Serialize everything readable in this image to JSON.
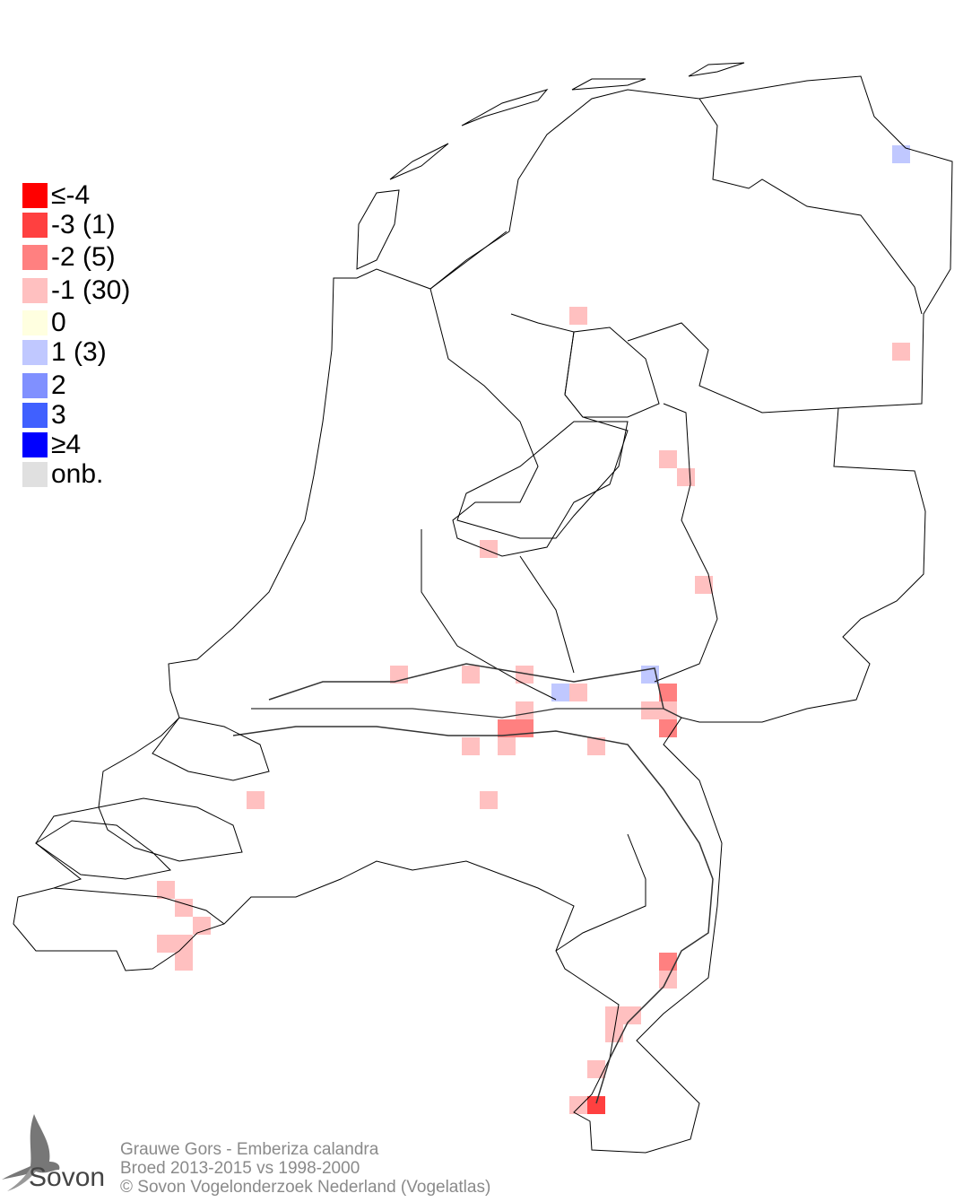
{
  "legend": {
    "items": [
      {
        "label": "≤-4",
        "color": "#ff0000"
      },
      {
        "label": "-3 (1)",
        "color": "#ff4040"
      },
      {
        "label": "-2 (5)",
        "color": "#ff8080"
      },
      {
        "label": "-1 (30)",
        "color": "#ffc0c0"
      },
      {
        "label": " 0",
        "color": "#ffffe0"
      },
      {
        "label": " 1 (3)",
        "color": "#c0c8ff"
      },
      {
        "label": " 2",
        "color": "#8090ff"
      },
      {
        "label": " 3",
        "color": "#4060ff"
      },
      {
        "label": "≥4",
        "color": "#0000ff"
      },
      {
        "label": "onb.",
        "color": "#e0e0e0"
      }
    ]
  },
  "map_cells": [
    {
      "col": 49,
      "row": 8,
      "value": 1
    },
    {
      "col": 31,
      "row": 17,
      "value": -1
    },
    {
      "col": 49,
      "row": 19,
      "value": -1
    },
    {
      "col": 36,
      "row": 25,
      "value": -1
    },
    {
      "col": 37,
      "row": 26,
      "value": -1
    },
    {
      "col": 26,
      "row": 30,
      "value": -1
    },
    {
      "col": 38,
      "row": 32,
      "value": -1
    },
    {
      "col": 21,
      "row": 37,
      "value": -1
    },
    {
      "col": 25,
      "row": 37,
      "value": -1
    },
    {
      "col": 28,
      "row": 37,
      "value": -1
    },
    {
      "col": 35,
      "row": 37,
      "value": 1
    },
    {
      "col": 30,
      "row": 38,
      "value": 1
    },
    {
      "col": 31,
      "row": 38,
      "value": -1
    },
    {
      "col": 36,
      "row": 38,
      "value": -2
    },
    {
      "col": 35,
      "row": 39,
      "value": -1
    },
    {
      "col": 36,
      "row": 39,
      "value": -1
    },
    {
      "col": 28,
      "row": 39,
      "value": -1
    },
    {
      "col": 27,
      "row": 40,
      "value": -2
    },
    {
      "col": 28,
      "row": 40,
      "value": -2
    },
    {
      "col": 36,
      "row": 40,
      "value": -2
    },
    {
      "col": 25,
      "row": 41,
      "value": -1
    },
    {
      "col": 27,
      "row": 41,
      "value": -1
    },
    {
      "col": 32,
      "row": 41,
      "value": -1
    },
    {
      "col": 13,
      "row": 44,
      "value": -1
    },
    {
      "col": 26,
      "row": 44,
      "value": -1
    },
    {
      "col": 8,
      "row": 49,
      "value": -1
    },
    {
      "col": 9,
      "row": 50,
      "value": -1
    },
    {
      "col": 10,
      "row": 51,
      "value": -1
    },
    {
      "col": 8,
      "row": 52,
      "value": -1
    },
    {
      "col": 9,
      "row": 52,
      "value": -1
    },
    {
      "col": 9,
      "row": 53,
      "value": -1
    },
    {
      "col": 36,
      "row": 53,
      "value": -2
    },
    {
      "col": 36,
      "row": 54,
      "value": -1
    },
    {
      "col": 33,
      "row": 56,
      "value": -1
    },
    {
      "col": 34,
      "row": 56,
      "value": -1
    },
    {
      "col": 33,
      "row": 57,
      "value": -1
    },
    {
      "col": 32,
      "row": 59,
      "value": -1
    },
    {
      "col": 31,
      "row": 61,
      "value": -1
    },
    {
      "col": 32,
      "row": 61,
      "value": -3
    }
  ],
  "footer": {
    "line1": "Grauwe Gors - Emberiza calandra",
    "line2": "Broed 2013-2015 vs 1998-2000",
    "line3": "© Sovon Vogelonderzoek Nederland (Vogelatlas)"
  },
  "logo": {
    "text": "Sovon",
    "icon": "swallow-logo-icon"
  }
}
